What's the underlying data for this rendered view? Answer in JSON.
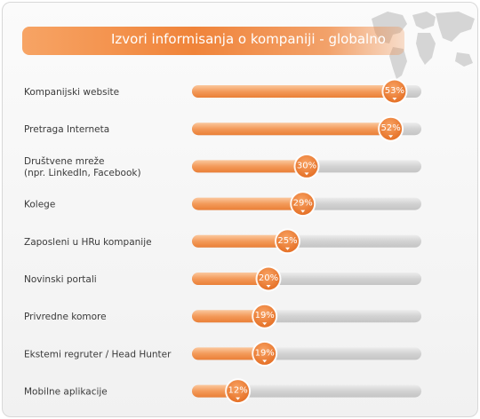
{
  "title": "Izvori informisanja o kompaniji - globalno",
  "colors": {
    "accent": "#f0843a",
    "track": "#d0d0d0",
    "badge": "#ee7a2f"
  },
  "chart_data": {
    "type": "bar",
    "orientation": "horizontal",
    "title": "Izvori informisanja o kompaniji - globalno",
    "xlim": [
      0,
      60
    ],
    "grid": false,
    "categories": [
      [
        "Kompanijski website"
      ],
      [
        "Pretraga Interneta"
      ],
      [
        "Društvene mreže",
        "(npr. LinkedIn, Facebook)"
      ],
      [
        "Kolege"
      ],
      [
        "Zaposleni u HRu kompanije"
      ],
      [
        "Novinski portali"
      ],
      [
        "Privredne komore"
      ],
      [
        "Ekstemi regruter / Head Hunter"
      ],
      [
        "Mobilne aplikacije"
      ]
    ],
    "values": [
      53,
      52,
      30,
      29,
      25,
      20,
      19,
      19,
      12
    ],
    "value_labels": [
      "53%",
      "52%",
      "30%",
      "29%",
      "25%",
      "20%",
      "19%",
      "19%",
      "12%"
    ]
  }
}
